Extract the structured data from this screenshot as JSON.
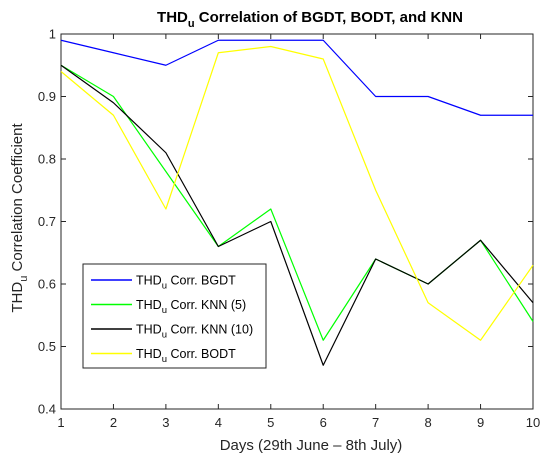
{
  "chart_data": {
    "type": "line",
    "title": "Correlation of BGDT, BODT, and KNN",
    "title_symbol": "THD",
    "title_subscript": "u",
    "xlabel": "Days (29th June – 8th July)",
    "ylabel": "Correlation Coefficient",
    "ylabel_symbol": "THD",
    "ylabel_subscript": "u",
    "x": [
      1,
      2,
      3,
      4,
      5,
      6,
      7,
      8,
      9,
      10
    ],
    "xlim": [
      1,
      10
    ],
    "ylim": [
      0.4,
      1.0
    ],
    "x_ticks": [
      "1",
      "2",
      "3",
      "4",
      "5",
      "6",
      "7",
      "8",
      "9",
      "10"
    ],
    "y_ticks": [
      "0.4",
      "0.5",
      "0.6",
      "0.7",
      "0.8",
      "0.9",
      "1"
    ],
    "grid": false,
    "legend_position": "lower-left",
    "series": [
      {
        "symbol": "THD",
        "subscript": "u",
        "name": "Corr. BGDT",
        "color": "#0000ff",
        "values": [
          0.99,
          0.97,
          0.95,
          0.99,
          0.99,
          0.99,
          0.9,
          0.9,
          0.87,
          0.87
        ]
      },
      {
        "symbol": "THD",
        "subscript": "u",
        "name": "Corr. KNN (5)",
        "color": "#00ff00",
        "values": [
          0.95,
          0.9,
          0.78,
          0.66,
          0.72,
          0.51,
          0.64,
          0.6,
          0.67,
          0.54
        ]
      },
      {
        "symbol": "THD",
        "subscript": "u",
        "name": "Corr. KNN (10)",
        "color": "#000000",
        "values": [
          0.95,
          0.89,
          0.81,
          0.66,
          0.7,
          0.47,
          0.64,
          0.6,
          0.67,
          0.57
        ]
      },
      {
        "symbol": "THD",
        "subscript": "u",
        "name": "Corr. BODT",
        "color": "#ffff00",
        "values": [
          0.94,
          0.87,
          0.72,
          0.97,
          0.98,
          0.96,
          0.75,
          0.57,
          0.51,
          0.63
        ]
      }
    ]
  }
}
